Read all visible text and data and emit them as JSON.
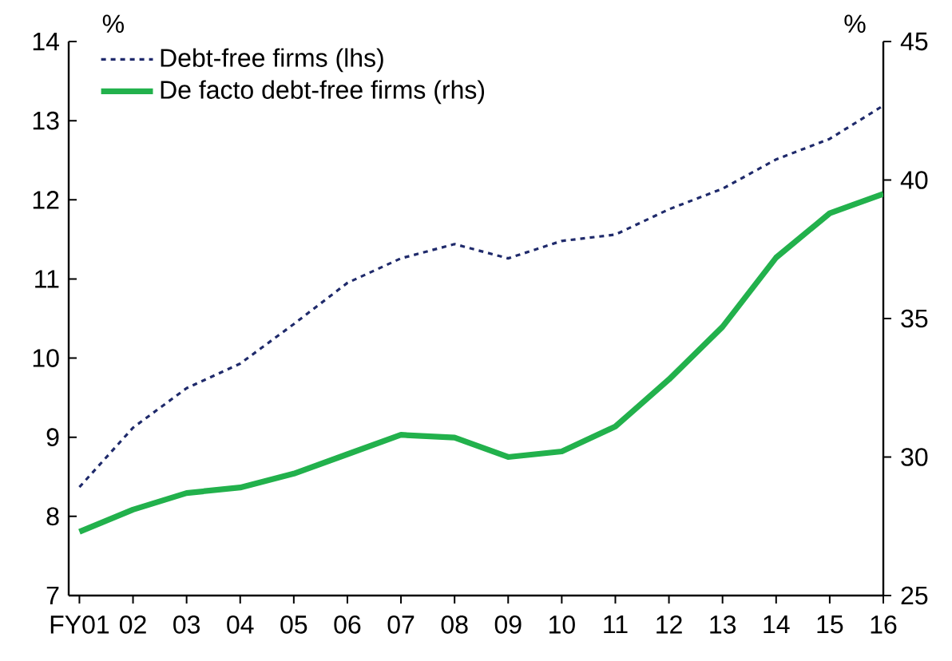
{
  "chart_data": {
    "type": "line",
    "ylabel": "%",
    "y2label": "%",
    "categories": [
      "FY01",
      "02",
      "03",
      "04",
      "05",
      "06",
      "07",
      "08",
      "09",
      "10",
      "11",
      "12",
      "13",
      "14",
      "15",
      "16"
    ],
    "series": [
      {
        "name": "Debt-free firms (lhs)",
        "color": "#1f2a6b",
        "line_style": "dashed",
        "values": [
          8.37,
          9.12,
          9.62,
          9.93,
          10.43,
          10.95,
          11.26,
          11.44,
          11.26,
          11.48,
          11.56,
          11.88,
          12.14,
          12.51,
          12.77,
          13.19
        ]
      },
      {
        "name": "De facto debt-free firms (rhs)",
        "color": "#22b14c",
        "line_style": "solid",
        "axis": "y2",
        "values": [
          27.3,
          28.1,
          28.7,
          28.9,
          29.4,
          30.1,
          30.8,
          30.7,
          30.0,
          30.2,
          31.1,
          32.8,
          34.7,
          37.2,
          38.8,
          39.5
        ]
      }
    ],
    "ylim": [
      7,
      14
    ],
    "yticks": [
      7,
      8,
      9,
      10,
      11,
      12,
      13,
      14
    ],
    "y2lim": [
      25,
      45
    ],
    "y2ticks": [
      25,
      30,
      35,
      40,
      45
    ],
    "legend": "top left",
    "grid": false,
    "marker": "none"
  }
}
